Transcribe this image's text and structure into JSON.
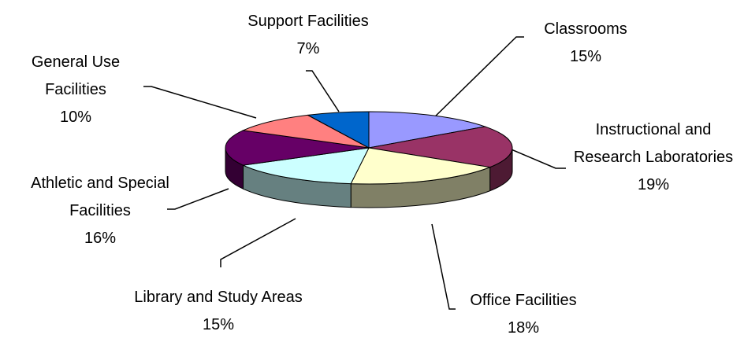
{
  "chart_data": {
    "type": "pie",
    "three_d": true,
    "categories": [
      "Classrooms",
      "Instructional and Research Laboratories",
      "Office Facilities",
      "Library and Study Areas",
      "Athletic and Special Facilities",
      "General Use Facilities",
      "Support Facilities"
    ],
    "values": [
      15,
      19,
      18,
      15,
      16,
      10,
      7
    ],
    "value_labels": [
      "15%",
      "19%",
      "18%",
      "15%",
      "16%",
      "10%",
      "7%"
    ],
    "colors": [
      "#9999ff",
      "#993366",
      "#ffffcc",
      "#ccffff",
      "#660066",
      "#ff8080",
      "#0066cc"
    ]
  }
}
